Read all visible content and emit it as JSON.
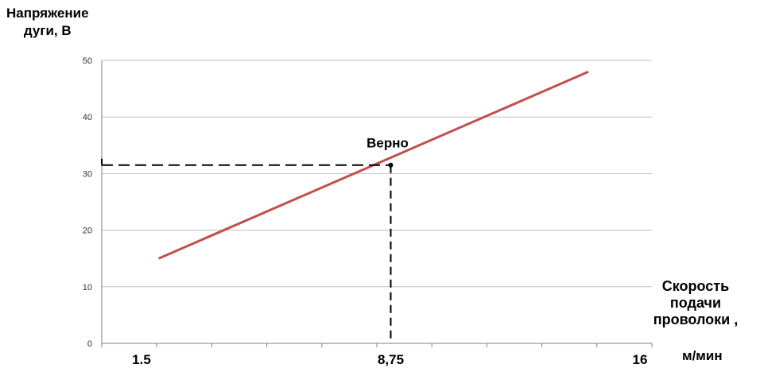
{
  "chart_data": {
    "type": "line",
    "ylabel_line1": "Напряжение",
    "ylabel_line2": "дуги, В",
    "xlabel_line1": "Скорость",
    "xlabel_line2": "подачи",
    "xlabel_line3": "проволоки ,",
    "x_unit": "м/мин",
    "ylim": [
      0,
      50
    ],
    "yticks": [
      "0",
      "10",
      "20",
      "30",
      "40",
      "50"
    ],
    "x_tick_labels": [
      {
        "value": 1.5,
        "label": "1.5"
      },
      {
        "value": 8.75,
        "label": "8,75"
      },
      {
        "value": 16,
        "label": "16"
      }
    ],
    "xlim": [
      1.5,
      16
    ],
    "grid": true,
    "series": [
      {
        "color": "#c0504d",
        "points": [
          [
            2.0,
            15
          ],
          [
            14.5,
            48
          ]
        ]
      }
    ],
    "annotation": {
      "text": "Верно",
      "x": 8.75,
      "y": 31.5
    },
    "colors": {
      "line": "#c0504d",
      "grid": "#bfbfbf",
      "axis": "#7f7f7f",
      "guide": "#000000"
    }
  }
}
